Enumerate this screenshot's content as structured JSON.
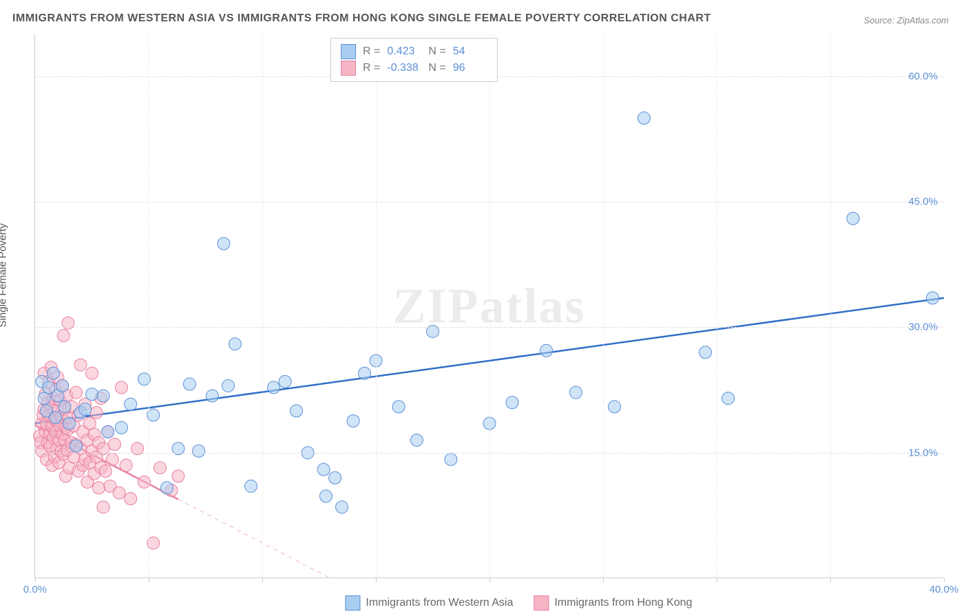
{
  "title": "IMMIGRANTS FROM WESTERN ASIA VS IMMIGRANTS FROM HONG KONG SINGLE FEMALE POVERTY CORRELATION CHART",
  "source_label": "Source: ZipAtlas.com",
  "y_axis_label": "Single Female Poverty",
  "watermark": "ZIPatlas",
  "chart": {
    "type": "scatter",
    "background_color": "#ffffff",
    "grid_color": "#dddddd",
    "xlim": [
      0,
      40
    ],
    "ylim": [
      0,
      65
    ],
    "x_ticks": [
      0,
      5,
      10,
      15,
      20,
      25,
      30,
      35,
      40
    ],
    "x_tick_labels": [
      "0.0%",
      "",
      "",
      "",
      "",
      "",
      "",
      "",
      "40.0%"
    ],
    "y_ticks": [
      15,
      30,
      45,
      60
    ],
    "y_tick_labels": [
      "15.0%",
      "30.0%",
      "45.0%",
      "60.0%"
    ],
    "marker_radius": 9,
    "marker_stroke_width": 1,
    "trendline_width": 2.5,
    "axis_label_color": "#5b8fd6",
    "text_color": "#555555"
  },
  "series": [
    {
      "name": "Immigrants from Western Asia",
      "fill_color": "#a8cdf0",
      "fill_opacity": 0.55,
      "stroke_color": "#5b8fd6",
      "trendline_color": "#2f6fc7",
      "trendline_dash": "none",
      "R": "0.423",
      "N": "54",
      "trendline": {
        "x1": 0,
        "y1": 18.5,
        "x2": 40,
        "y2": 33.5
      },
      "points": [
        [
          0.3,
          23.5
        ],
        [
          0.4,
          21.5
        ],
        [
          0.5,
          20
        ],
        [
          0.6,
          22.8
        ],
        [
          0.8,
          24.5
        ],
        [
          0.9,
          19.2
        ],
        [
          1.0,
          21.8
        ],
        [
          1.2,
          23
        ],
        [
          1.3,
          20.5
        ],
        [
          1.5,
          18.5
        ],
        [
          1.8,
          15.8
        ],
        [
          2.0,
          19.8
        ],
        [
          2.2,
          20.2
        ],
        [
          2.5,
          22
        ],
        [
          3.0,
          21.8
        ],
        [
          3.2,
          17.5
        ],
        [
          3.8,
          18
        ],
        [
          4.2,
          20.8
        ],
        [
          4.8,
          23.8
        ],
        [
          5.2,
          19.5
        ],
        [
          5.8,
          10.8
        ],
        [
          6.3,
          15.5
        ],
        [
          6.8,
          23.2
        ],
        [
          7.2,
          15.2
        ],
        [
          7.8,
          21.8
        ],
        [
          8.3,
          40
        ],
        [
          8.5,
          23
        ],
        [
          8.8,
          28
        ],
        [
          9.5,
          11
        ],
        [
          10.5,
          22.8
        ],
        [
          11,
          23.5
        ],
        [
          11.5,
          20
        ],
        [
          12,
          15
        ],
        [
          12.7,
          13
        ],
        [
          12.8,
          9.8
        ],
        [
          13.2,
          12
        ],
        [
          13.5,
          8.5
        ],
        [
          14,
          18.8
        ],
        [
          14.5,
          24.5
        ],
        [
          15,
          26
        ],
        [
          16,
          20.5
        ],
        [
          16.8,
          16.5
        ],
        [
          17.5,
          29.5
        ],
        [
          18.3,
          14.2
        ],
        [
          20,
          18.5
        ],
        [
          21,
          21
        ],
        [
          22.5,
          27.2
        ],
        [
          23.8,
          22.2
        ],
        [
          25.5,
          20.5
        ],
        [
          26.8,
          55
        ],
        [
          29.5,
          27
        ],
        [
          30.5,
          21.5
        ],
        [
          36,
          43
        ],
        [
          39.5,
          33.5
        ]
      ]
    },
    {
      "name": "Immigrants from Hong Kong",
      "fill_color": "#f5b5c5",
      "fill_opacity": 0.55,
      "stroke_color": "#e87ea0",
      "trendline_color": "#e87ea0",
      "trendline_dash": "dashed",
      "R": "-0.338",
      "N": "96",
      "trendline": {
        "x1": 0,
        "y1": 18.3,
        "x2": 13,
        "y2": 0
      },
      "points": [
        [
          0.2,
          17
        ],
        [
          0.25,
          16.2
        ],
        [
          0.3,
          18.5
        ],
        [
          0.3,
          15.2
        ],
        [
          0.35,
          19.5
        ],
        [
          0.4,
          24.5
        ],
        [
          0.4,
          20.2
        ],
        [
          0.45,
          17.5
        ],
        [
          0.45,
          22
        ],
        [
          0.5,
          18.5
        ],
        [
          0.5,
          14.2
        ],
        [
          0.55,
          21
        ],
        [
          0.55,
          16.2
        ],
        [
          0.6,
          23.5
        ],
        [
          0.6,
          19.5
        ],
        [
          0.65,
          15.8
        ],
        [
          0.65,
          17.2
        ],
        [
          0.7,
          20.5
        ],
        [
          0.7,
          25.2
        ],
        [
          0.75,
          18.2
        ],
        [
          0.75,
          13.5
        ],
        [
          0.8,
          16.8
        ],
        [
          0.8,
          21.5
        ],
        [
          0.85,
          19
        ],
        [
          0.85,
          14.5
        ],
        [
          0.9,
          17.5
        ],
        [
          0.9,
          22.5
        ],
        [
          0.95,
          15.5
        ],
        [
          0.95,
          18.8
        ],
        [
          1.0,
          20
        ],
        [
          1.0,
          24
        ],
        [
          1.05,
          16.5
        ],
        [
          1.05,
          13.8
        ],
        [
          1.1,
          18.2
        ],
        [
          1.1,
          21.2
        ],
        [
          1.15,
          15.2
        ],
        [
          1.15,
          19.3
        ],
        [
          1.2,
          17.2
        ],
        [
          1.2,
          23
        ],
        [
          1.25,
          29
        ],
        [
          1.25,
          14.8
        ],
        [
          1.3,
          20.2
        ],
        [
          1.3,
          16.5
        ],
        [
          1.35,
          18
        ],
        [
          1.35,
          12.2
        ],
        [
          1.4,
          21.8
        ],
        [
          1.4,
          15.3
        ],
        [
          1.45,
          17.8
        ],
        [
          1.45,
          30.5
        ],
        [
          1.5,
          19.2
        ],
        [
          1.5,
          13.2
        ],
        [
          1.6,
          16.2
        ],
        [
          1.6,
          20.5
        ],
        [
          1.7,
          14.5
        ],
        [
          1.7,
          18.2
        ],
        [
          1.8,
          22.2
        ],
        [
          1.8,
          16
        ],
        [
          1.9,
          12.8
        ],
        [
          1.9,
          19.5
        ],
        [
          2.0,
          25.5
        ],
        [
          2.0,
          15.5
        ],
        [
          2.1,
          17.5
        ],
        [
          2.1,
          13.5
        ],
        [
          2.2,
          20.8
        ],
        [
          2.2,
          14.2
        ],
        [
          2.3,
          16.5
        ],
        [
          2.3,
          11.5
        ],
        [
          2.4,
          18.5
        ],
        [
          2.4,
          13.8
        ],
        [
          2.5,
          15.2
        ],
        [
          2.5,
          24.5
        ],
        [
          2.6,
          12.5
        ],
        [
          2.6,
          17.2
        ],
        [
          2.7,
          14.5
        ],
        [
          2.7,
          19.8
        ],
        [
          2.8,
          10.8
        ],
        [
          2.8,
          16.2
        ],
        [
          2.9,
          13.2
        ],
        [
          2.9,
          21.5
        ],
        [
          3.0,
          8.5
        ],
        [
          3.0,
          15.5
        ],
        [
          3.1,
          12.8
        ],
        [
          3.2,
          17.5
        ],
        [
          3.3,
          11
        ],
        [
          3.4,
          14.2
        ],
        [
          3.5,
          16
        ],
        [
          3.7,
          10.2
        ],
        [
          3.8,
          22.8
        ],
        [
          4.0,
          13.5
        ],
        [
          4.2,
          9.5
        ],
        [
          4.5,
          15.5
        ],
        [
          4.8,
          11.5
        ],
        [
          5.2,
          4.2
        ],
        [
          5.5,
          13.2
        ],
        [
          6.0,
          10.5
        ],
        [
          6.3,
          12.2
        ]
      ]
    }
  ],
  "stats_box_labels": {
    "R": "R =",
    "N": "N ="
  },
  "legend_labels": [
    "Immigrants from Western Asia",
    "Immigrants from Hong Kong"
  ]
}
